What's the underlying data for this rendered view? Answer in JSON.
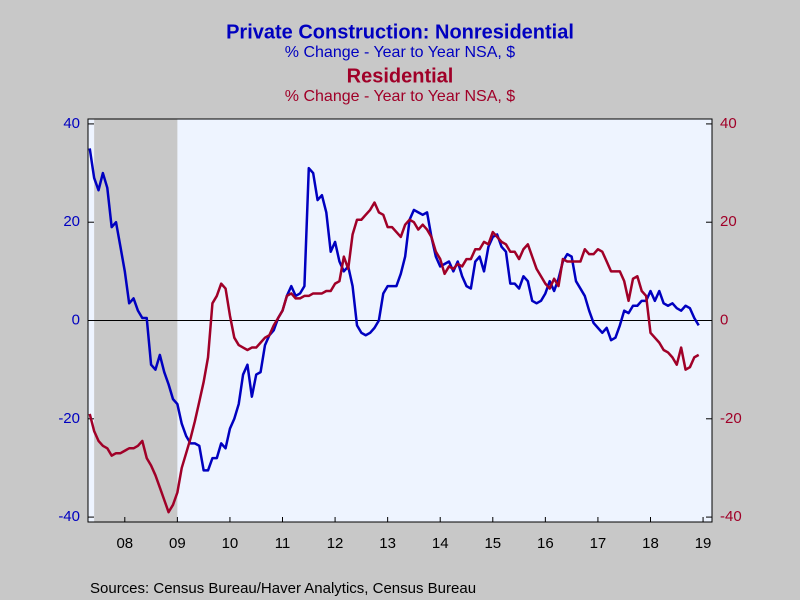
{
  "chart_data": {
    "type": "line",
    "title": "Private Construction: Nonresidential",
    "subtitle": "% Change - Year to Year    NSA, $",
    "title2": "Residential",
    "subtitle2": "% Change - Year to Year    NSA, $",
    "source": "Sources:  Census Bureau/Haver Analytics, Census Bureau",
    "x": [
      2007.833,
      2007.917,
      2008.0,
      2008.083,
      2008.167,
      2008.25,
      2008.333,
      2008.417,
      2008.5,
      2008.583,
      2008.667,
      2008.75,
      2008.833,
      2008.917,
      2009.0,
      2009.083,
      2009.167,
      2009.25,
      2009.333,
      2009.417,
      2009.5,
      2009.583,
      2009.667,
      2009.75,
      2009.833,
      2009.917,
      2010.0,
      2010.083,
      2010.167,
      2010.25,
      2010.333,
      2010.417,
      2010.5,
      2010.583,
      2010.667,
      2010.75,
      2010.833,
      2010.917,
      2011.0,
      2011.083,
      2011.167,
      2011.25,
      2011.333,
      2011.417,
      2011.5,
      2011.583,
      2011.667,
      2011.75,
      2011.833,
      2011.917,
      2012.0,
      2012.083,
      2012.167,
      2012.25,
      2012.333,
      2012.417,
      2012.5,
      2012.583,
      2012.667,
      2012.75,
      2012.833,
      2012.917,
      2013.0,
      2013.083,
      2013.167,
      2013.25,
      2013.333,
      2013.417,
      2013.5,
      2013.583,
      2013.667,
      2013.75,
      2013.833,
      2013.917,
      2014.0,
      2014.083,
      2014.167,
      2014.25,
      2014.333,
      2014.417,
      2014.5,
      2014.583,
      2014.667,
      2014.75,
      2014.833,
      2014.917,
      2015.0,
      2015.083,
      2015.167,
      2015.25,
      2015.333,
      2015.417,
      2015.5,
      2015.583,
      2015.667,
      2015.75,
      2015.833,
      2015.917,
      2016.0,
      2016.083,
      2016.167,
      2016.25,
      2016.333,
      2016.417,
      2016.5,
      2016.583,
      2016.667,
      2016.75,
      2016.833,
      2016.917,
      2017.0,
      2017.083,
      2017.167,
      2017.25,
      2017.333,
      2017.417,
      2017.5,
      2017.583,
      2017.667,
      2017.75,
      2017.833,
      2017.917,
      2018.0,
      2018.083,
      2018.167,
      2018.25,
      2018.333,
      2018.417,
      2018.5,
      2018.583,
      2018.667,
      2018.75,
      2018.833,
      2018.917,
      2019.0,
      2019.083,
      2019.167,
      2019.25,
      2019.333,
      2019.417
    ],
    "series": [
      {
        "name": "Private Construction: Nonresidential",
        "color": "#0000c0",
        "axis": "y",
        "values": [
          35,
          29,
          26.5,
          30,
          27,
          19,
          20,
          15,
          10,
          3.5,
          4.5,
          2,
          0.5,
          0.5,
          -9,
          -10,
          -7,
          -10.5,
          -13,
          -16,
          -17,
          -21,
          -23.5,
          -25,
          -25,
          -25.5,
          -30.5,
          -30.5,
          -28,
          -28,
          -25,
          -26,
          -22,
          -20,
          -17,
          -11,
          -9,
          -15.5,
          -11,
          -10.5,
          -5,
          -3,
          -2,
          0.5,
          2,
          5,
          7,
          5,
          5.5,
          7,
          31,
          30,
          24.5,
          25.5,
          22,
          14,
          16,
          12,
          10,
          11,
          7,
          -1,
          -2.5,
          -3,
          -2.5,
          -1.5,
          0,
          5.5,
          7,
          7,
          7,
          9.5,
          13,
          20.5,
          22.5,
          22,
          21.5,
          22,
          17,
          13,
          11,
          11.5,
          12,
          10,
          12,
          9,
          7,
          6.5,
          12,
          13,
          10,
          15,
          17,
          17.5,
          15,
          14,
          7.5,
          7.5,
          6.5,
          9,
          8,
          4,
          3.5,
          4,
          5.5,
          8,
          6,
          8.5,
          12,
          13.5,
          13,
          8,
          6.5,
          5,
          2,
          -0.5,
          -1.5,
          -2.5,
          -1.5,
          -4,
          -3.5,
          -1,
          2,
          1.5,
          3,
          3,
          4,
          4,
          6,
          4,
          6,
          3.5,
          3,
          3.5,
          2.5,
          2,
          3,
          2.5,
          0.5,
          -1
        ]
      },
      {
        "name": "Residential",
        "color": "#a00028",
        "axis": "y2",
        "values": [
          -19,
          -22.5,
          -24.5,
          -25.5,
          -26,
          -27.5,
          -27,
          -27,
          -26.5,
          -26,
          -26,
          -25.5,
          -24.5,
          -28,
          -29.5,
          -31.5,
          -34,
          -36.5,
          -39,
          -37.5,
          -35,
          -30,
          -27,
          -24,
          -20.5,
          -16.5,
          -12.5,
          -7.5,
          3.5,
          5,
          7.5,
          6.5,
          1,
          -3.5,
          -5,
          -5.5,
          -6,
          -5.5,
          -5.5,
          -4.5,
          -3.5,
          -3,
          -1,
          0.5,
          2,
          5,
          5.5,
          4.5,
          4.5,
          5,
          5,
          5.5,
          5.5,
          5.5,
          6,
          6,
          7.5,
          8,
          13,
          10.5,
          17.5,
          20.5,
          20.5,
          21.5,
          22.5,
          24,
          22,
          21.5,
          19,
          19,
          18,
          17,
          19.5,
          20.5,
          20,
          18.5,
          19.5,
          18.5,
          17,
          14,
          12.5,
          9.5,
          11,
          10.5,
          11.5,
          11,
          12.5,
          12.5,
          14.5,
          14.5,
          16,
          15.5,
          18,
          17,
          16,
          15.5,
          14,
          14,
          12.5,
          14.5,
          15.5,
          13,
          10.5,
          9,
          7.5,
          6.5,
          8.5,
          7,
          12.5,
          12,
          12,
          12,
          12,
          14.5,
          13.5,
          13.5,
          14.5,
          14,
          12,
          10,
          10,
          10,
          8,
          4,
          8.5,
          9,
          6,
          5,
          -2.5,
          -3.5,
          -4.5,
          -6,
          -6.5,
          -7.5,
          -9,
          -5.5,
          -10,
          -9.5,
          -7.5,
          -7
        ]
      }
    ],
    "xlim": [
      2007.8,
      2019.67
    ],
    "xticks": [
      {
        "value": 2008.5,
        "label": "08"
      },
      {
        "value": 2009.5,
        "label": "09"
      },
      {
        "value": 2010.5,
        "label": "10"
      },
      {
        "value": 2011.5,
        "label": "11"
      },
      {
        "value": 2012.5,
        "label": "12"
      },
      {
        "value": 2013.5,
        "label": "13"
      },
      {
        "value": 2014.5,
        "label": "14"
      },
      {
        "value": 2015.5,
        "label": "15"
      },
      {
        "value": 2016.5,
        "label": "16"
      },
      {
        "value": 2017.5,
        "label": "17"
      },
      {
        "value": 2018.5,
        "label": "18"
      },
      {
        "value": 2019.5,
        "label": "19"
      }
    ],
    "ylim": [
      -41,
      41
    ],
    "yticks": [
      -40,
      -20,
      0,
      20,
      40
    ],
    "y2lim": [
      -41,
      41
    ],
    "y2ticks": [
      -40,
      -20,
      0,
      20,
      40
    ],
    "shading": [
      [
        2007.917,
        2009.5
      ]
    ],
    "zero_line": true
  }
}
